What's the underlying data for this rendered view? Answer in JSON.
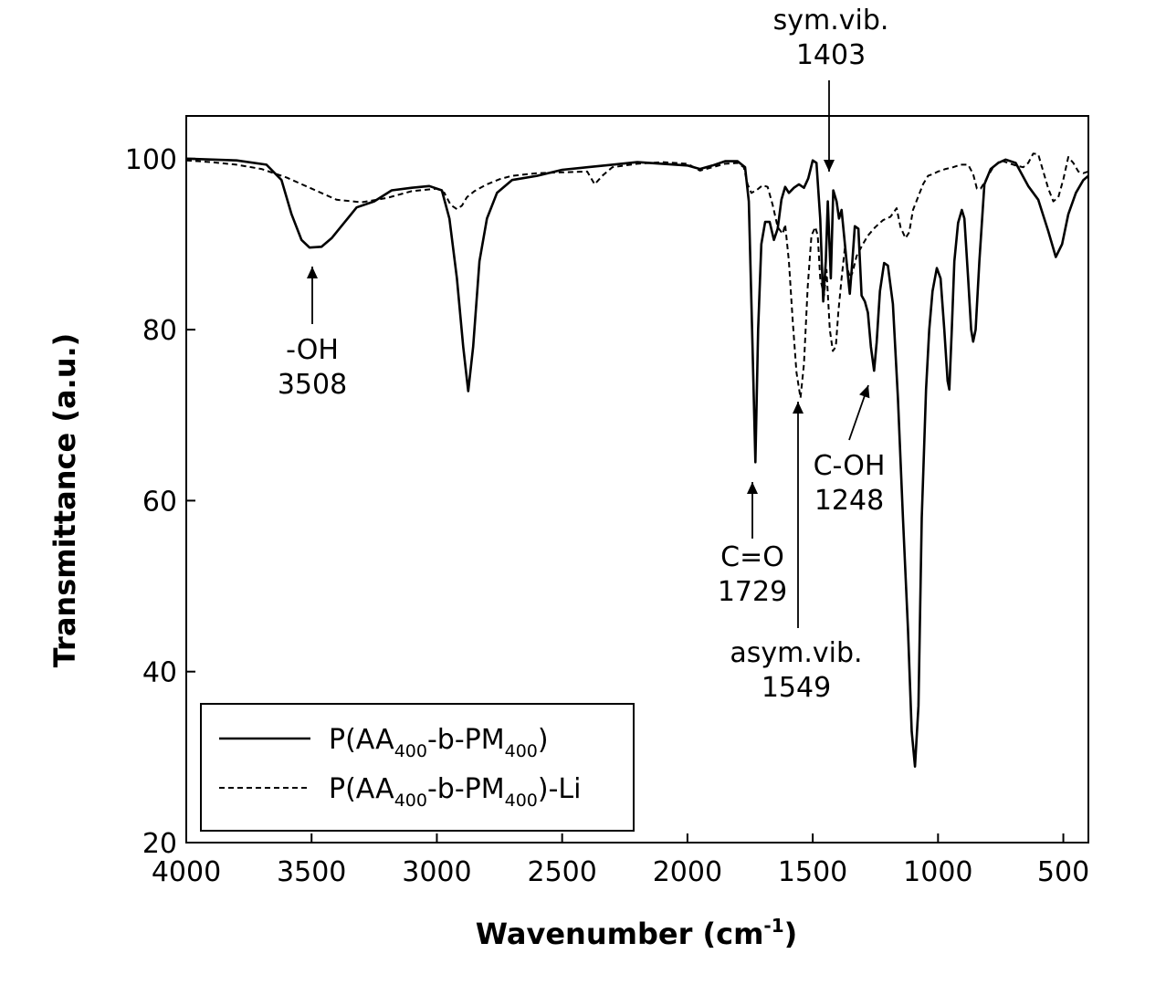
{
  "chart_data": {
    "type": "line",
    "title": "",
    "xlabel": "Wavenumber (cm",
    "xlabel_sup": "-1",
    "xlabel_close": ")",
    "ylabel": "Transmittance (a.u.)",
    "xlim": [
      4000,
      400
    ],
    "ylim": [
      20,
      105
    ],
    "x_ticks": [
      4000,
      3500,
      3000,
      2500,
      2000,
      1500,
      1000,
      500
    ],
    "y_ticks": [
      20,
      40,
      60,
      80,
      100
    ],
    "legend": {
      "position": "bottom-left",
      "entries": [
        {
          "style": "solid",
          "parts": [
            "P(AA",
            "400",
            "-b-PM",
            "400",
            ")"
          ]
        },
        {
          "style": "dashed",
          "parts": [
            "P(AA",
            "400",
            "-b-PM",
            "400",
            ")-Li"
          ]
        }
      ]
    },
    "annotations": [
      {
        "line1": "sym.vib.",
        "line2": "1403",
        "x": 1403
      },
      {
        "line1": "-OH",
        "line2": "3508",
        "x": 3508
      },
      {
        "line1": "C=O",
        "line2": "1729",
        "x": 1729
      },
      {
        "line1": "asym.vib.",
        "line2": "1549",
        "x": 1549
      },
      {
        "line1": "C-OH",
        "line2": "1248",
        "x": 1248
      }
    ],
    "series": [
      {
        "name": "P(AA400-b-PM400)",
        "style": "solid",
        "points": [
          [
            4000,
            100
          ],
          [
            3800,
            99.8
          ],
          [
            3680,
            99.3
          ],
          [
            3620,
            97.5
          ],
          [
            3580,
            93.5
          ],
          [
            3540,
            90.5
          ],
          [
            3508,
            89.6
          ],
          [
            3460,
            89.7
          ],
          [
            3420,
            90.7
          ],
          [
            3370,
            92.5
          ],
          [
            3320,
            94.3
          ],
          [
            3250,
            95
          ],
          [
            3180,
            96.3
          ],
          [
            3100,
            96.6
          ],
          [
            3030,
            96.8
          ],
          [
            2980,
            96.3
          ],
          [
            2950,
            93
          ],
          [
            2920,
            86
          ],
          [
            2895,
            78
          ],
          [
            2875,
            72.8
          ],
          [
            2855,
            78
          ],
          [
            2830,
            88
          ],
          [
            2800,
            93
          ],
          [
            2760,
            96
          ],
          [
            2700,
            97.5
          ],
          [
            2600,
            98
          ],
          [
            2500,
            98.7
          ],
          [
            2400,
            99
          ],
          [
            2300,
            99.3
          ],
          [
            2200,
            99.6
          ],
          [
            2100,
            99.4
          ],
          [
            2000,
            99.2
          ],
          [
            1950,
            98.8
          ],
          [
            1900,
            99.2
          ],
          [
            1850,
            99.7
          ],
          [
            1800,
            99.7
          ],
          [
            1770,
            99
          ],
          [
            1755,
            95
          ],
          [
            1742,
            80
          ],
          [
            1729,
            64.5
          ],
          [
            1718,
            80
          ],
          [
            1705,
            90
          ],
          [
            1690,
            92.6
          ],
          [
            1672,
            92.6
          ],
          [
            1655,
            90.5
          ],
          [
            1640,
            91.8
          ],
          [
            1625,
            95.2
          ],
          [
            1610,
            96.7
          ],
          [
            1595,
            96
          ],
          [
            1575,
            96.6
          ],
          [
            1555,
            97
          ],
          [
            1535,
            96.6
          ],
          [
            1518,
            97.7
          ],
          [
            1500,
            99.8
          ],
          [
            1485,
            99.5
          ],
          [
            1470,
            93
          ],
          [
            1458,
            83.3
          ],
          [
            1448,
            88
          ],
          [
            1440,
            95
          ],
          [
            1428,
            86
          ],
          [
            1418,
            96.3
          ],
          [
            1405,
            95
          ],
          [
            1395,
            93
          ],
          [
            1385,
            94
          ],
          [
            1370,
            89.5
          ],
          [
            1360,
            86.5
          ],
          [
            1352,
            84.2
          ],
          [
            1342,
            88
          ],
          [
            1332,
            92.1
          ],
          [
            1318,
            91.8
          ],
          [
            1305,
            84
          ],
          [
            1292,
            83.3
          ],
          [
            1280,
            82
          ],
          [
            1268,
            78
          ],
          [
            1255,
            75.2
          ],
          [
            1245,
            78.5
          ],
          [
            1232,
            84.5
          ],
          [
            1215,
            87.8
          ],
          [
            1200,
            87.5
          ],
          [
            1180,
            83
          ],
          [
            1160,
            72
          ],
          [
            1140,
            58
          ],
          [
            1120,
            45
          ],
          [
            1105,
            33
          ],
          [
            1092,
            28.9
          ],
          [
            1078,
            36
          ],
          [
            1065,
            58
          ],
          [
            1058,
            64
          ],
          [
            1048,
            73
          ],
          [
            1035,
            80
          ],
          [
            1022,
            84.5
          ],
          [
            1005,
            87.2
          ],
          [
            990,
            86
          ],
          [
            975,
            80
          ],
          [
            962,
            74
          ],
          [
            955,
            73
          ],
          [
            945,
            80
          ],
          [
            935,
            88
          ],
          [
            920,
            92.5
          ],
          [
            905,
            94
          ],
          [
            895,
            93
          ],
          [
            880,
            86
          ],
          [
            868,
            80
          ],
          [
            860,
            78.6
          ],
          [
            850,
            80
          ],
          [
            835,
            88
          ],
          [
            815,
            97
          ],
          [
            790,
            98.8
          ],
          [
            760,
            99.5
          ],
          [
            730,
            99.9
          ],
          [
            690,
            99.5
          ],
          [
            640,
            96.8
          ],
          [
            600,
            95.2
          ],
          [
            560,
            91.5
          ],
          [
            530,
            88.5
          ],
          [
            505,
            90
          ],
          [
            480,
            93.5
          ],
          [
            450,
            96
          ],
          [
            420,
            97.5
          ],
          [
            400,
            98
          ]
        ]
      },
      {
        "name": "P(AA400-b-PM400)-Li",
        "style": "dashed",
        "points": [
          [
            4000,
            99.8
          ],
          [
            3900,
            99.6
          ],
          [
            3800,
            99.3
          ],
          [
            3700,
            98.8
          ],
          [
            3600,
            97.8
          ],
          [
            3500,
            96.5
          ],
          [
            3400,
            95.2
          ],
          [
            3300,
            94.9
          ],
          [
            3200,
            95.4
          ],
          [
            3100,
            96.2
          ],
          [
            3000,
            96.5
          ],
          [
            2970,
            96
          ],
          [
            2945,
            94.6
          ],
          [
            2920,
            94.1
          ],
          [
            2900,
            94.5
          ],
          [
            2880,
            95.5
          ],
          [
            2850,
            96.2
          ],
          [
            2800,
            97
          ],
          [
            2750,
            97.6
          ],
          [
            2700,
            98
          ],
          [
            2600,
            98.3
          ],
          [
            2500,
            98.4
          ],
          [
            2400,
            98.5
          ],
          [
            2370,
            97
          ],
          [
            2340,
            98
          ],
          [
            2300,
            99
          ],
          [
            2200,
            99.4
          ],
          [
            2100,
            99.6
          ],
          [
            2000,
            99.4
          ],
          [
            1950,
            98.6
          ],
          [
            1900,
            99
          ],
          [
            1850,
            99.4
          ],
          [
            1800,
            99.5
          ],
          [
            1775,
            99
          ],
          [
            1760,
            97
          ],
          [
            1745,
            96
          ],
          [
            1725,
            96.3
          ],
          [
            1700,
            96.9
          ],
          [
            1680,
            96.7
          ],
          [
            1660,
            94.6
          ],
          [
            1640,
            92
          ],
          [
            1620,
            91.2
          ],
          [
            1610,
            92.3
          ],
          [
            1595,
            88
          ],
          [
            1580,
            81
          ],
          [
            1565,
            75
          ],
          [
            1549,
            72
          ],
          [
            1535,
            76
          ],
          [
            1520,
            85
          ],
          [
            1505,
            91
          ],
          [
            1490,
            92
          ],
          [
            1480,
            91
          ],
          [
            1470,
            86
          ],
          [
            1455,
            84
          ],
          [
            1445,
            87
          ],
          [
            1432,
            80
          ],
          [
            1420,
            77.5
          ],
          [
            1408,
            78
          ],
          [
            1398,
            82
          ],
          [
            1385,
            86
          ],
          [
            1372,
            89.5
          ],
          [
            1360,
            87
          ],
          [
            1350,
            86
          ],
          [
            1340,
            86.8
          ],
          [
            1325,
            88.6
          ],
          [
            1300,
            90
          ],
          [
            1280,
            91
          ],
          [
            1250,
            92
          ],
          [
            1220,
            92.8
          ],
          [
            1190,
            93.2
          ],
          [
            1165,
            94.2
          ],
          [
            1150,
            92
          ],
          [
            1130,
            90.7
          ],
          [
            1115,
            91.4
          ],
          [
            1100,
            94
          ],
          [
            1080,
            95.5
          ],
          [
            1060,
            97
          ],
          [
            1040,
            98
          ],
          [
            1020,
            98.2
          ],
          [
            1000,
            98.5
          ],
          [
            970,
            98.8
          ],
          [
            940,
            99
          ],
          [
            910,
            99.3
          ],
          [
            880,
            99.3
          ],
          [
            860,
            98.2
          ],
          [
            845,
            96.5
          ],
          [
            830,
            96.5
          ],
          [
            815,
            97.2
          ],
          [
            800,
            98
          ],
          [
            780,
            99
          ],
          [
            750,
            99.8
          ],
          [
            720,
            99.5
          ],
          [
            690,
            99.2
          ],
          [
            660,
            99
          ],
          [
            640,
            99.5
          ],
          [
            620,
            100.6
          ],
          [
            600,
            100.5
          ],
          [
            580,
            98.5
          ],
          [
            560,
            96.5
          ],
          [
            540,
            95
          ],
          [
            520,
            95.5
          ],
          [
            500,
            97.6
          ],
          [
            480,
            100.2
          ],
          [
            460,
            99.5
          ],
          [
            440,
            98.5
          ],
          [
            420,
            98.3
          ],
          [
            400,
            98.5
          ]
        ]
      }
    ]
  }
}
